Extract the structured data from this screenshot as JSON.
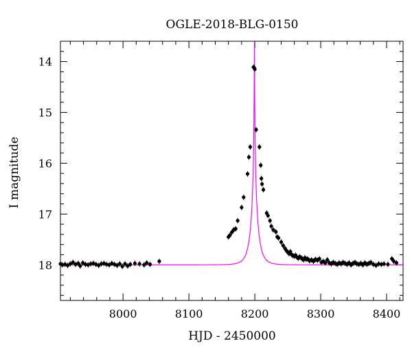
{
  "chart_data": {
    "type": "scatter",
    "title": "OGLE-2018-BLG-0150",
    "xlabel": "HJD - 2450000",
    "ylabel": "I magnitude",
    "xlim": [
      7905,
      8425
    ],
    "ylim": [
      18.7,
      13.6
    ],
    "y_inverted": true,
    "xticks": [
      8000,
      8100,
      8200,
      8300,
      8400
    ],
    "yticks": [
      14,
      15,
      16,
      17,
      18
    ],
    "x_minor_step": 20,
    "y_minor_step": 0.2,
    "grid": false,
    "legend": "none",
    "colors": {
      "points": "#000000",
      "model": "#ff00ff",
      "axes": "#000000"
    },
    "model": {
      "name": "",
      "kind": "point-lens microlensing fit",
      "t0": 8199.4,
      "u0": 0.016,
      "tE": 10.5,
      "baseline_mag": 18.0
    },
    "series": [
      {
        "name": "",
        "points": [
          [
            7905,
            17.98
          ],
          [
            7908,
            18.0
          ],
          [
            7912,
            17.99
          ],
          [
            7916,
            18.01
          ],
          [
            7920,
            17.98
          ],
          [
            7924,
            17.95
          ],
          [
            7928,
            17.99
          ],
          [
            7932,
            17.97
          ],
          [
            7935,
            18.02
          ],
          [
            7939,
            17.96
          ],
          [
            7943,
            17.99
          ],
          [
            7947,
            18.0
          ],
          [
            7951,
            17.98
          ],
          [
            7955,
            17.97
          ],
          [
            7959,
            17.99
          ],
          [
            7963,
            18.01
          ],
          [
            7967,
            17.98
          ],
          [
            7971,
            17.97
          ],
          [
            7975,
            17.99
          ],
          [
            7979,
            18.0
          ],
          [
            7983,
            17.97
          ],
          [
            7987,
            17.99
          ],
          [
            7991,
            18.01
          ],
          [
            7995,
            17.98
          ],
          [
            7999,
            18.03
          ],
          [
            8003,
            17.98
          ],
          [
            8007,
            18.02
          ],
          [
            8011,
            17.99
          ],
          [
            8018,
            17.97
          ],
          [
            8025,
            17.98
          ],
          [
            8032,
            18.0
          ],
          [
            8036,
            17.96
          ],
          [
            8041,
            17.99
          ],
          [
            8055,
            17.93
          ],
          [
            8160,
            17.45
          ],
          [
            8162,
            17.42
          ],
          [
            8165,
            17.36
          ],
          [
            8168,
            17.31
          ],
          [
            8171,
            17.29
          ],
          [
            8174,
            17.13
          ],
          [
            8180,
            16.87
          ],
          [
            8183,
            16.67
          ],
          [
            8189,
            16.21
          ],
          [
            8191,
            15.88
          ],
          [
            8193,
            15.68
          ],
          [
            8198,
            14.11
          ],
          [
            8199,
            14.12
          ],
          [
            8200,
            14.15
          ],
          [
            8202,
            15.34
          ],
          [
            8207,
            15.68
          ],
          [
            8209,
            16.04
          ],
          [
            8210,
            16.3
          ],
          [
            8211,
            16.41
          ],
          [
            8213,
            16.52
          ],
          [
            8218,
            16.98
          ],
          [
            8220,
            17.03
          ],
          [
            8223,
            17.13
          ],
          [
            8225,
            17.24
          ],
          [
            8228,
            17.31
          ],
          [
            8232,
            17.35
          ],
          [
            8234,
            17.45
          ],
          [
            8236,
            17.47
          ],
          [
            8240,
            17.55
          ],
          [
            8243,
            17.62
          ],
          [
            8246,
            17.68
          ],
          [
            8248,
            17.72
          ],
          [
            8250,
            17.75
          ],
          [
            8252,
            17.78
          ],
          [
            8254,
            17.74
          ],
          [
            8256,
            17.8
          ],
          [
            8258,
            17.82
          ],
          [
            8260,
            17.83
          ],
          [
            8262,
            17.81
          ],
          [
            8264,
            17.85
          ],
          [
            8266,
            17.87
          ],
          [
            8268,
            17.84
          ],
          [
            8270,
            17.86
          ],
          [
            8272,
            17.88
          ],
          [
            8274,
            17.9
          ],
          [
            8276,
            17.86
          ],
          [
            8278,
            17.89
          ],
          [
            8280,
            17.88
          ],
          [
            8283,
            17.92
          ],
          [
            8286,
            17.9
          ],
          [
            8289,
            17.93
          ],
          [
            8292,
            17.89
          ],
          [
            8295,
            17.91
          ],
          [
            8298,
            17.88
          ],
          [
            8301,
            17.95
          ],
          [
            8304,
            17.93
          ],
          [
            8307,
            17.96
          ],
          [
            8310,
            17.9
          ],
          [
            8313,
            17.96
          ],
          [
            8316,
            17.98
          ],
          [
            8319,
            17.95
          ],
          [
            8322,
            17.97
          ],
          [
            8325,
            17.99
          ],
          [
            8328,
            17.96
          ],
          [
            8331,
            17.98
          ],
          [
            8334,
            17.95
          ],
          [
            8337,
            17.97
          ],
          [
            8340,
            17.99
          ],
          [
            8343,
            17.96
          ],
          [
            8346,
            18.0
          ],
          [
            8349,
            17.97
          ],
          [
            8352,
            17.95
          ],
          [
            8355,
            17.98
          ],
          [
            8358,
            17.99
          ],
          [
            8361,
            17.97
          ],
          [
            8364,
            18.0
          ],
          [
            8367,
            17.96
          ],
          [
            8370,
            17.99
          ],
          [
            8373,
            17.97
          ],
          [
            8376,
            17.95
          ],
          [
            8380,
            17.99
          ],
          [
            8384,
            18.01
          ],
          [
            8388,
            17.98
          ],
          [
            8392,
            17.99
          ],
          [
            8396,
            17.98
          ],
          [
            8402,
            17.99
          ],
          [
            8408,
            17.88
          ],
          [
            8411,
            17.93
          ],
          [
            8415,
            17.96
          ]
        ]
      }
    ]
  }
}
